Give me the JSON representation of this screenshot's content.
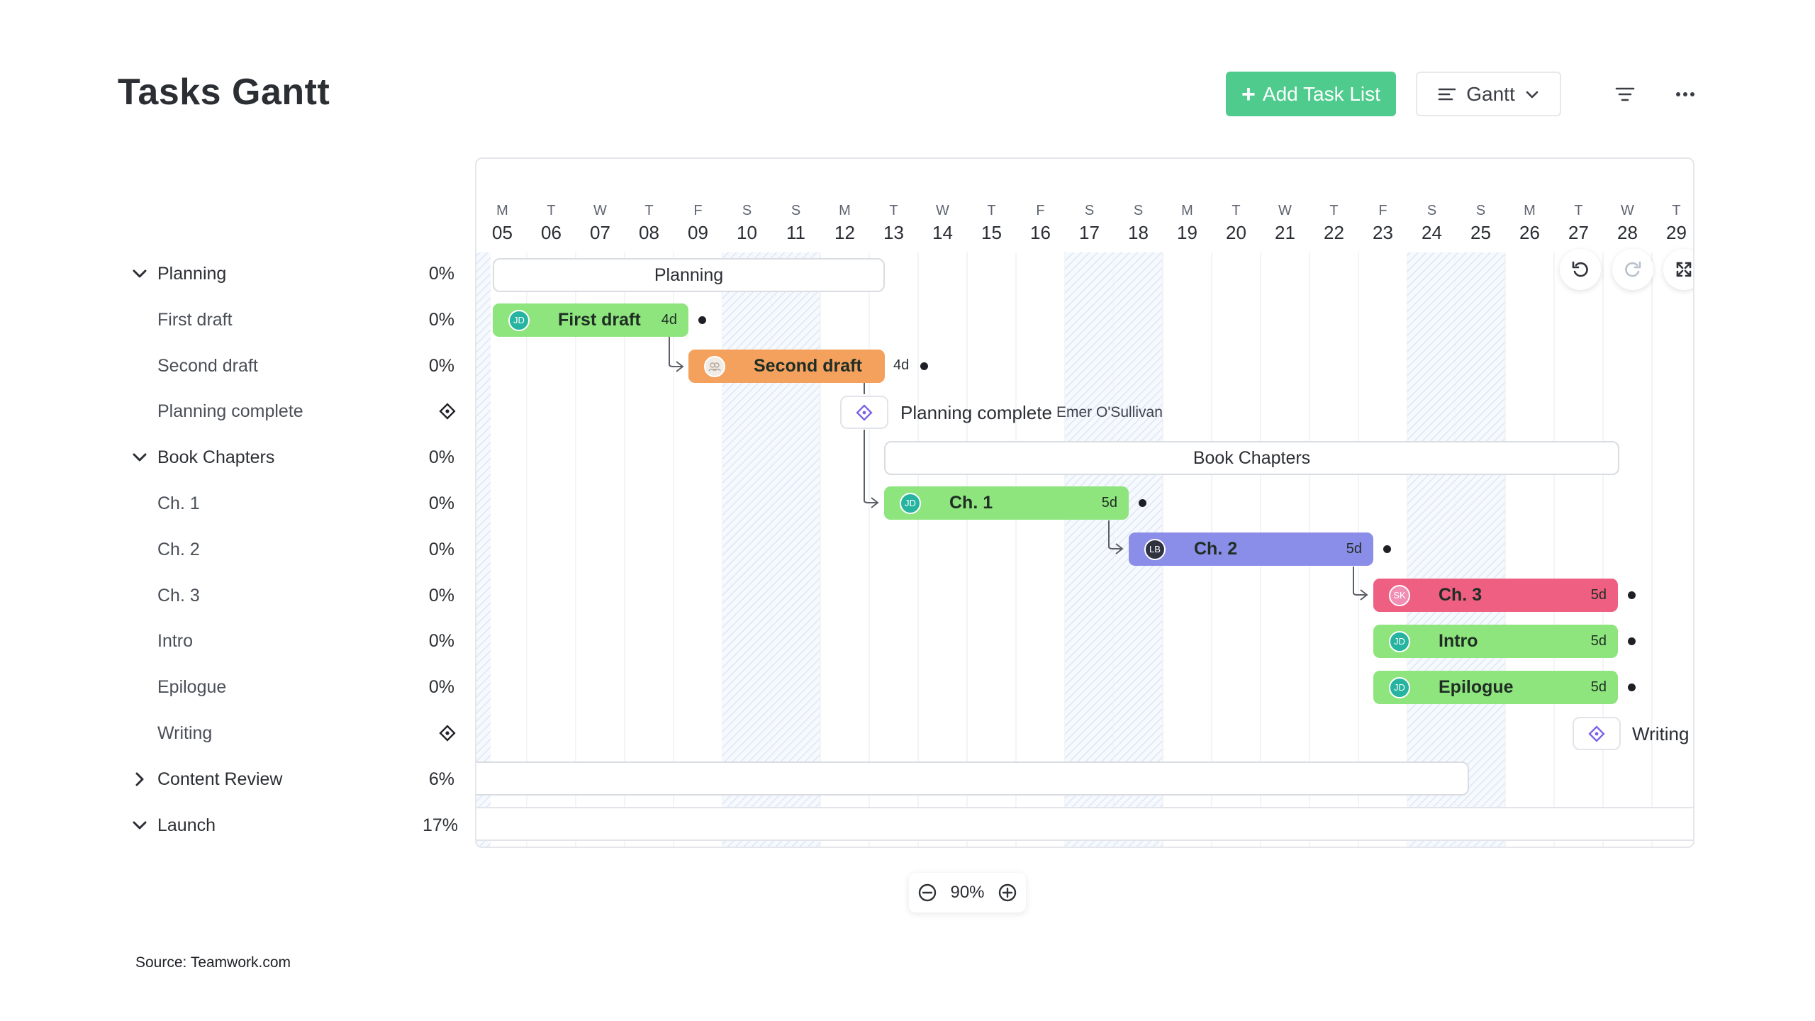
{
  "header": {
    "title": "Tasks Gantt",
    "add_button": "Add Task List",
    "view_select": "Gantt"
  },
  "colors": {
    "green": "#8ee57e",
    "orange": "#f5a15e",
    "purple": "#8b8ee8",
    "pink": "#ee5f82",
    "add_button": "#4ecb8d",
    "milestone_icon": "#7b61e8",
    "weekend_hatch": "#dde7f5"
  },
  "timeline": {
    "days": [
      {
        "letter": "M",
        "num": "05"
      },
      {
        "letter": "T",
        "num": "06"
      },
      {
        "letter": "W",
        "num": "07"
      },
      {
        "letter": "T",
        "num": "08"
      },
      {
        "letter": "F",
        "num": "09"
      },
      {
        "letter": "S",
        "num": "10"
      },
      {
        "letter": "S",
        "num": "11"
      },
      {
        "letter": "M",
        "num": "12"
      },
      {
        "letter": "T",
        "num": "13"
      },
      {
        "letter": "W",
        "num": "14"
      },
      {
        "letter": "T",
        "num": "15"
      },
      {
        "letter": "F",
        "num": "16"
      },
      {
        "letter": "S",
        "num": "17"
      },
      {
        "letter": "S",
        "num": "18"
      },
      {
        "letter": "M",
        "num": "19"
      },
      {
        "letter": "T",
        "num": "20"
      },
      {
        "letter": "W",
        "num": "21"
      },
      {
        "letter": "T",
        "num": "22"
      },
      {
        "letter": "F",
        "num": "23"
      },
      {
        "letter": "S",
        "num": "24"
      },
      {
        "letter": "S",
        "num": "25"
      },
      {
        "letter": "M",
        "num": "26"
      },
      {
        "letter": "T",
        "num": "27"
      },
      {
        "letter": "W",
        "num": "28"
      },
      {
        "letter": "T",
        "num": "29"
      }
    ]
  },
  "tasklist": {
    "rows": [
      {
        "label": "Planning",
        "pct": "0%",
        "kind": "group",
        "chevron": "down"
      },
      {
        "label": "First draft",
        "pct": "0%",
        "kind": "task"
      },
      {
        "label": "Second draft",
        "pct": "0%",
        "kind": "task"
      },
      {
        "label": "Planning complete",
        "kind": "milestone"
      },
      {
        "label": "Book Chapters",
        "pct": "0%",
        "kind": "group",
        "chevron": "down"
      },
      {
        "label": "Ch. 1",
        "pct": "0%",
        "kind": "task"
      },
      {
        "label": "Ch. 2",
        "pct": "0%",
        "kind": "task"
      },
      {
        "label": "Ch. 3",
        "pct": "0%",
        "kind": "task"
      },
      {
        "label": "Intro",
        "pct": "0%",
        "kind": "task"
      },
      {
        "label": "Epilogue",
        "pct": "0%",
        "kind": "task"
      },
      {
        "label": "Writing",
        "kind": "milestone"
      },
      {
        "label": "Content Review",
        "pct": "6%",
        "kind": "group",
        "chevron": "right"
      },
      {
        "label": "Launch",
        "pct": "17%",
        "kind": "group",
        "chevron": "down"
      }
    ]
  },
  "bars": {
    "planning_group": "Planning",
    "book_chapters_group": "Book Chapters",
    "first_draft": {
      "name": "First draft",
      "avatar": "JD",
      "duration": "4d"
    },
    "second_draft": {
      "name": "Second draft",
      "duration": "4d"
    },
    "planning_complete": {
      "name": "Planning complete",
      "assignee": "Emer O'Sullivan"
    },
    "ch1": {
      "name": "Ch. 1",
      "avatar": "JD",
      "duration": "5d"
    },
    "ch2": {
      "name": "Ch. 2",
      "avatar": "LB",
      "duration": "5d"
    },
    "ch3": {
      "name": "Ch. 3",
      "avatar": "SK",
      "duration": "5d"
    },
    "intro": {
      "name": "Intro",
      "avatar": "JD",
      "duration": "5d"
    },
    "epilogue": {
      "name": "Epilogue",
      "avatar": "JD",
      "duration": "5d"
    },
    "writing": {
      "name": "Writing"
    }
  },
  "zoom": {
    "value": "90%"
  },
  "footer": {
    "source": "Source: Teamwork.com"
  }
}
